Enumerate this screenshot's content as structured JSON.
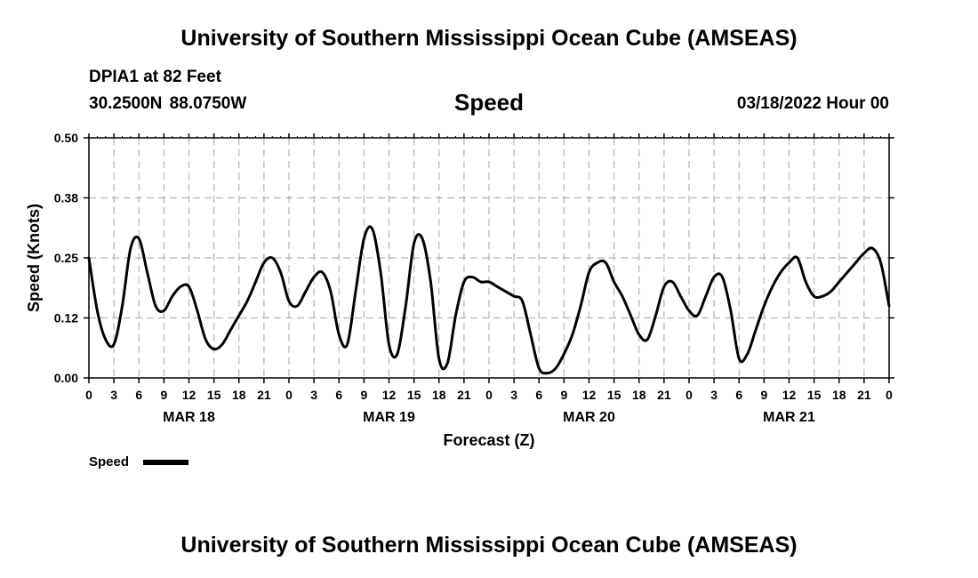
{
  "header": {
    "main_title": "University of Southern Mississippi Ocean Cube (AMSEAS)",
    "station": "DPIA1 at 82 Feet",
    "coords": "30.2500N  88.0750W",
    "datetime": "03/18/2022 Hour 00"
  },
  "footer": {
    "title": "University of Southern Mississippi Ocean Cube (AMSEAS)"
  },
  "chart_data": {
    "type": "line",
    "title": "Speed",
    "xlabel": "Forecast (Z)",
    "ylabel": "Speed (Knots)",
    "ylim": [
      0,
      0.5
    ],
    "yticks": [
      "0.00",
      "0.12",
      "0.25",
      "0.38",
      "0.50"
    ],
    "ytick_values": [
      0,
      0.125,
      0.25,
      0.375,
      0.5
    ],
    "xlim": [
      0,
      96
    ],
    "x_step_hours": 3,
    "xtick_labels": [
      "0",
      "3",
      "6",
      "9",
      "12",
      "15",
      "18",
      "21",
      "0",
      "3",
      "6",
      "9",
      "12",
      "15",
      "18",
      "21",
      "0",
      "3",
      "6",
      "9",
      "12",
      "15",
      "18",
      "21",
      "0",
      "3",
      "6",
      "9",
      "12",
      "15",
      "18",
      "21",
      "0"
    ],
    "date_labels": [
      {
        "label": "MAR 18",
        "hour": 12
      },
      {
        "label": "MAR 19",
        "hour": 36
      },
      {
        "label": "MAR 20",
        "hour": 60
      },
      {
        "label": "MAR 21",
        "hour": 84
      }
    ],
    "grid": true,
    "legend": {
      "position": "bottom-left"
    },
    "series": [
      {
        "name": "Speed",
        "color": "#000000",
        "x": [
          0,
          1,
          2,
          3,
          4,
          5,
          6,
          7,
          8,
          9,
          10,
          11,
          12,
          13,
          14,
          15,
          16,
          17,
          18,
          19,
          20,
          21,
          22,
          23,
          24,
          25,
          26,
          27,
          28,
          29,
          30,
          31,
          32,
          33,
          34,
          35,
          36,
          37,
          38,
          39,
          40,
          41,
          42,
          43,
          44,
          45,
          46,
          47,
          48,
          49,
          50,
          51,
          52,
          53,
          54,
          55,
          56,
          57,
          58,
          59,
          60,
          61,
          62,
          63,
          64,
          65,
          66,
          67,
          68,
          69,
          70,
          71,
          72,
          73,
          74,
          75,
          76,
          77,
          78,
          79,
          80,
          81,
          82,
          83,
          84,
          85,
          86,
          87,
          88,
          89,
          90,
          91,
          92,
          93,
          94,
          95,
          96
        ],
        "values": [
          0.25,
          0.14,
          0.08,
          0.07,
          0.15,
          0.27,
          0.29,
          0.22,
          0.15,
          0.14,
          0.17,
          0.19,
          0.19,
          0.14,
          0.08,
          0.06,
          0.07,
          0.1,
          0.13,
          0.16,
          0.2,
          0.24,
          0.25,
          0.22,
          0.16,
          0.15,
          0.18,
          0.21,
          0.22,
          0.18,
          0.09,
          0.07,
          0.18,
          0.29,
          0.31,
          0.22,
          0.07,
          0.05,
          0.15,
          0.28,
          0.29,
          0.2,
          0.04,
          0.03,
          0.13,
          0.2,
          0.21,
          0.2,
          0.2,
          0.19,
          0.18,
          0.17,
          0.16,
          0.09,
          0.02,
          0.01,
          0.02,
          0.05,
          0.09,
          0.15,
          0.22,
          0.24,
          0.24,
          0.2,
          0.17,
          0.13,
          0.09,
          0.08,
          0.13,
          0.19,
          0.2,
          0.17,
          0.14,
          0.13,
          0.17,
          0.21,
          0.21,
          0.14,
          0.04,
          0.05,
          0.1,
          0.15,
          0.19,
          0.22,
          0.24,
          0.25,
          0.2,
          0.17,
          0.17,
          0.18,
          0.2,
          0.22,
          0.24,
          0.26,
          0.27,
          0.24,
          0.15
        ]
      }
    ]
  }
}
